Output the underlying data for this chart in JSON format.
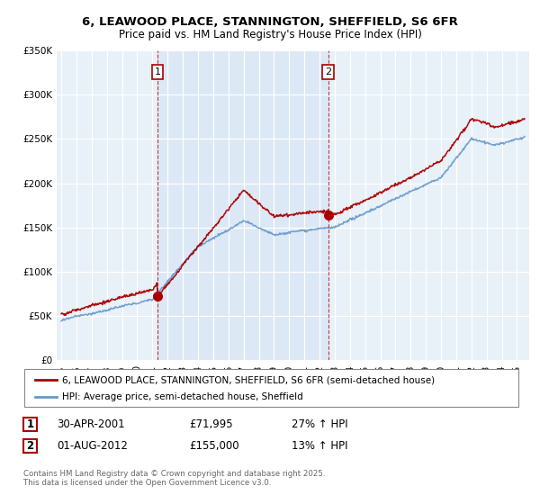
{
  "title_line1": "6, LEAWOOD PLACE, STANNINGTON, SHEFFIELD, S6 6FR",
  "title_line2": "Price paid vs. HM Land Registry's House Price Index (HPI)",
  "legend_line1": "6, LEAWOOD PLACE, STANNINGTON, SHEFFIELD, S6 6FR (semi-detached house)",
  "legend_line2": "HPI: Average price, semi-detached house, Sheffield",
  "annotation1_date": "30-APR-2001",
  "annotation1_price": "£71,995",
  "annotation1_hpi": "27% ↑ HPI",
  "annotation2_date": "01-AUG-2012",
  "annotation2_price": "£155,000",
  "annotation2_hpi": "13% ↑ HPI",
  "copyright": "Contains HM Land Registry data © Crown copyright and database right 2025.\nThis data is licensed under the Open Government Licence v3.0.",
  "transaction1_year": 2001.33,
  "transaction1_price": 71995,
  "transaction2_year": 2012.58,
  "transaction2_price": 155000,
  "price_color": "#aa0000",
  "hpi_color": "#6699cc",
  "shade_color": "#dce8f5",
  "background_color": "#e8f0f8",
  "ylim_max": 350000,
  "ylim_min": 0,
  "yticks": [
    0,
    50000,
    100000,
    150000,
    200000,
    250000,
    300000,
    350000
  ]
}
